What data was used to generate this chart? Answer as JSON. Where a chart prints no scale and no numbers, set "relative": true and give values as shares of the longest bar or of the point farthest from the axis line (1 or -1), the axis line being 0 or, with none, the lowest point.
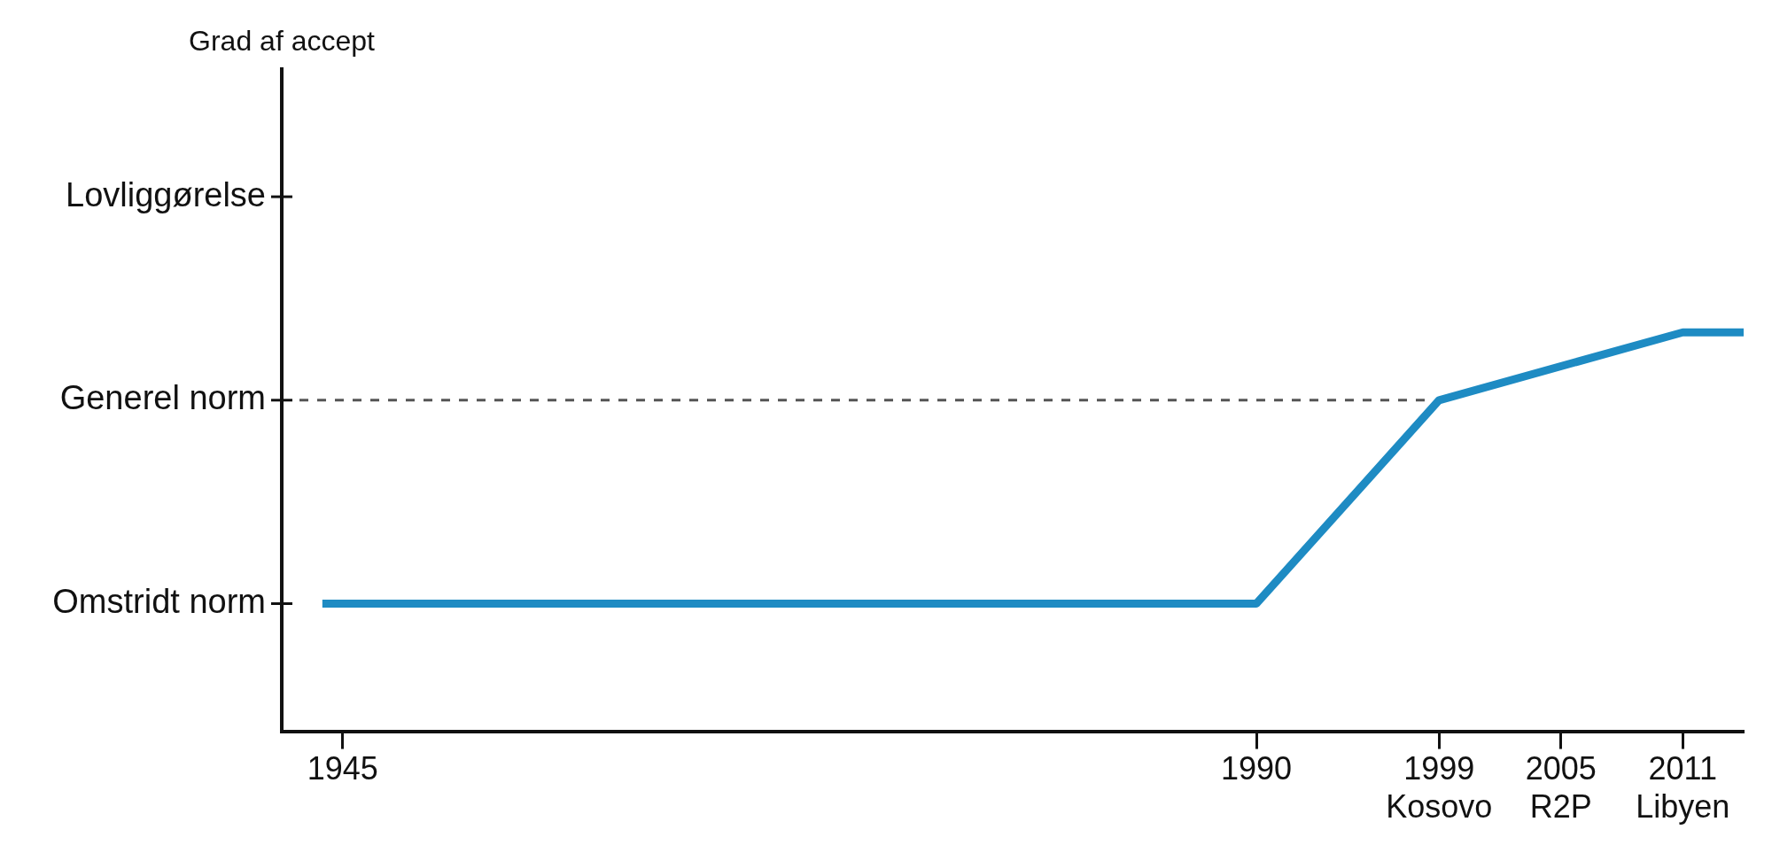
{
  "chart_data": {
    "type": "line",
    "relative": true,
    "xlim": [
      1942,
      2014
    ],
    "xticks": [
      1945,
      1990,
      {
        "value": 1999,
        "label": "1999\nKosovo"
      },
      {
        "value": 2005,
        "label": "2005\nR2P"
      },
      {
        "value": 2011,
        "label": "2011\nLibyen"
      }
    ],
    "series": [
      {
        "color": "#1e8bc3",
        "x": [
          1944,
          1990,
          1999,
          2011,
          2014
        ],
        "values": [
          0.32,
          0.32,
          0.83,
          1,
          1
        ]
      }
    ],
    "annotations": [
      "Grad af accept",
      "Lovliggørelse",
      "Generel norm",
      "Omstridt norm"
    ],
    "ref_lines": [
      {
        "axis": "y",
        "value": 0.83,
        "color": "#555555",
        "line_style": "dashed"
      }
    ],
    "grid": false,
    "legend": false,
    "marker": "none",
    "line_style": "solid"
  }
}
